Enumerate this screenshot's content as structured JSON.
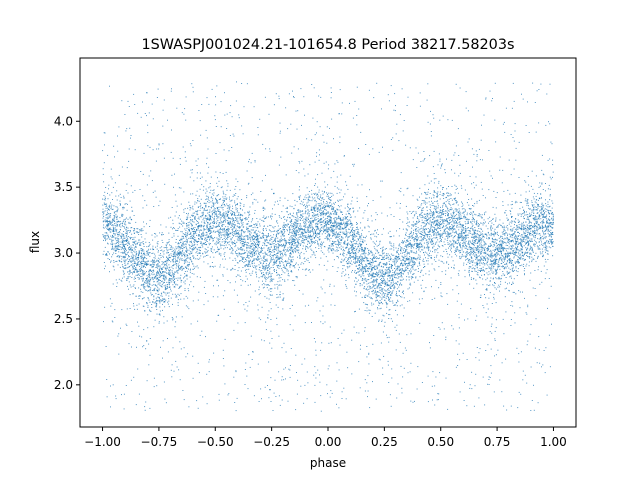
{
  "chart_data": {
    "type": "scatter",
    "title": "1SWASPJ001024.21-101654.8 Period 38217.58203s",
    "xlabel": "phase",
    "ylabel": "flux",
    "xlim": [
      -1.1,
      1.1
    ],
    "ylim": [
      1.68,
      4.48
    ],
    "xticks": [
      -1.0,
      -0.75,
      -0.5,
      -0.25,
      0.0,
      0.25,
      0.5,
      0.75,
      1.0
    ],
    "xtick_labels": [
      "−1.00",
      "−0.75",
      "−0.50",
      "−0.25",
      "0.00",
      "0.25",
      "0.50",
      "0.75",
      "1.00"
    ],
    "yticks": [
      2.0,
      2.5,
      3.0,
      3.5,
      4.0
    ],
    "ytick_labels": [
      "2.0",
      "2.5",
      "3.0",
      "3.5",
      "4.0"
    ],
    "grid": false,
    "marker_color": "#1f77b4",
    "series": [
      {
        "phase": [
          -1.0,
          -0.95,
          -0.9,
          -0.85,
          -0.8,
          -0.75,
          -0.7,
          -0.65,
          -0.6,
          -0.55,
          -0.5,
          -0.45,
          -0.4,
          -0.35,
          -0.3,
          -0.25,
          -0.2,
          -0.15,
          -0.1,
          -0.05,
          0.0,
          0.05,
          0.1,
          0.15,
          0.2,
          0.25,
          0.3,
          0.35,
          0.4,
          0.45,
          0.5,
          0.55,
          0.6,
          0.65,
          0.7,
          0.75,
          0.8,
          0.85,
          0.9,
          0.95,
          1.0
        ],
        "flux_median": [
          3.22,
          3.15,
          3.05,
          2.95,
          2.85,
          2.8,
          2.88,
          3.0,
          3.12,
          3.2,
          3.24,
          3.22,
          3.15,
          3.07,
          3.0,
          2.97,
          3.03,
          3.12,
          3.2,
          3.25,
          3.24,
          3.18,
          3.08,
          2.97,
          2.86,
          2.8,
          2.85,
          2.97,
          3.1,
          3.2,
          3.24,
          3.22,
          3.15,
          3.07,
          3.0,
          2.97,
          3.02,
          3.1,
          3.18,
          3.23,
          3.22
        ],
        "scatter_sigma": 0.13,
        "outlier_range": [
          1.8,
          4.3
        ],
        "n_points": 9000,
        "n_outliers": 1400
      }
    ]
  }
}
